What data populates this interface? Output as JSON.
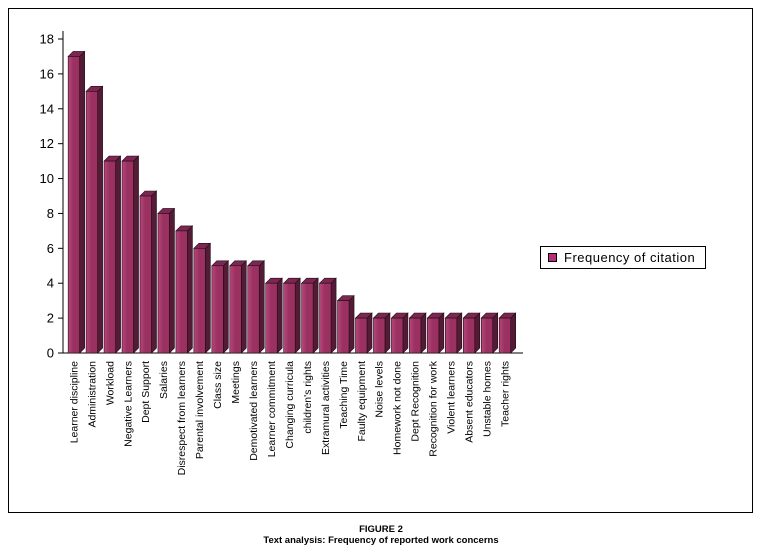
{
  "caption": {
    "figure": "FIGURE 2",
    "text": "Text analysis: Frequency of reported work concerns"
  },
  "chart_data": {
    "type": "bar",
    "style": "3d-column",
    "title": "",
    "legend_label": "Frequency of citation",
    "legend_position": "right-middle",
    "grid": false,
    "categories": [
      "Learner discipline",
      "Administration",
      "Workload",
      "Negative Learners",
      "Dept Support",
      "Salaries",
      "Disrespect from learners",
      "Parental involvement",
      "Class size",
      "Meetings",
      "Demotivated learners",
      "Learner commitment",
      "Changing curricula",
      "children's rights",
      "Extramural activities",
      "Teaching Time",
      "Faulty equipment",
      "Noise levels",
      "Homework not done",
      "Dept Recognition",
      "Recognition for work",
      "Violent learners",
      "Absent educators",
      "Unstable homes",
      "Teacher rights"
    ],
    "values": [
      17,
      15,
      11,
      11,
      9,
      8,
      7,
      6,
      5,
      5,
      5,
      4,
      4,
      4,
      4,
      3,
      2,
      2,
      2,
      2,
      2,
      2,
      2,
      2,
      2
    ],
    "ylabel": "",
    "xlabel": "",
    "ylim": [
      0,
      18
    ],
    "ytick_step": 2,
    "colors": {
      "axis": "#000000",
      "bar_front": "#9b3161",
      "bar_front_light": "#b5487e",
      "bar_top": "#7c2751",
      "bar_side": "#541b36",
      "bar_edge": "#220b16",
      "legend_marker": "#b52e77"
    }
  }
}
